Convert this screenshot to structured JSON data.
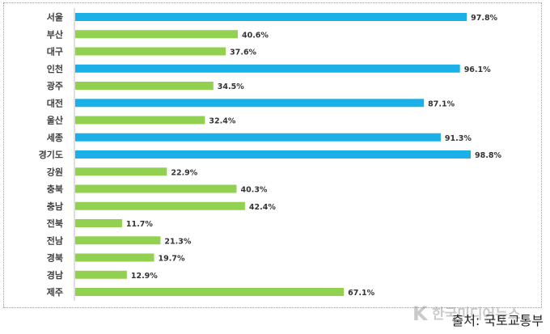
{
  "chart_data": {
    "type": "bar",
    "orientation": "horizontal",
    "categories": [
      "서울",
      "부산",
      "대구",
      "인천",
      "광주",
      "대전",
      "울산",
      "세종",
      "경기도",
      "강원",
      "충북",
      "충남",
      "전북",
      "전남",
      "경북",
      "경남",
      "제주"
    ],
    "values": [
      97.8,
      40.6,
      37.6,
      96.1,
      34.5,
      87.1,
      32.4,
      91.3,
      98.8,
      22.9,
      40.3,
      42.4,
      11.7,
      21.3,
      19.7,
      12.9,
      67.1
    ],
    "value_labels": [
      "97.8%",
      "40.6%",
      "37.6%",
      "96.1%",
      "34.5%",
      "87.1%",
      "32.4%",
      "91.3%",
      "98.8%",
      "22.9%",
      "40.3%",
      "42.4%",
      "11.7%",
      "21.3%",
      "19.7%",
      "12.9%",
      "67.1%"
    ],
    "highlighted": [
      "서울",
      "인천",
      "대전",
      "세종",
      "경기도"
    ],
    "colors": {
      "highlight": "#1bb0e8",
      "normal": "#92d050"
    },
    "title": "",
    "xlabel": "",
    "ylabel": "",
    "xlim": [
      0,
      100
    ],
    "grid": false,
    "legend": "none"
  },
  "source": "출처: 국토교통부",
  "watermark": "한국미디어뉴스"
}
